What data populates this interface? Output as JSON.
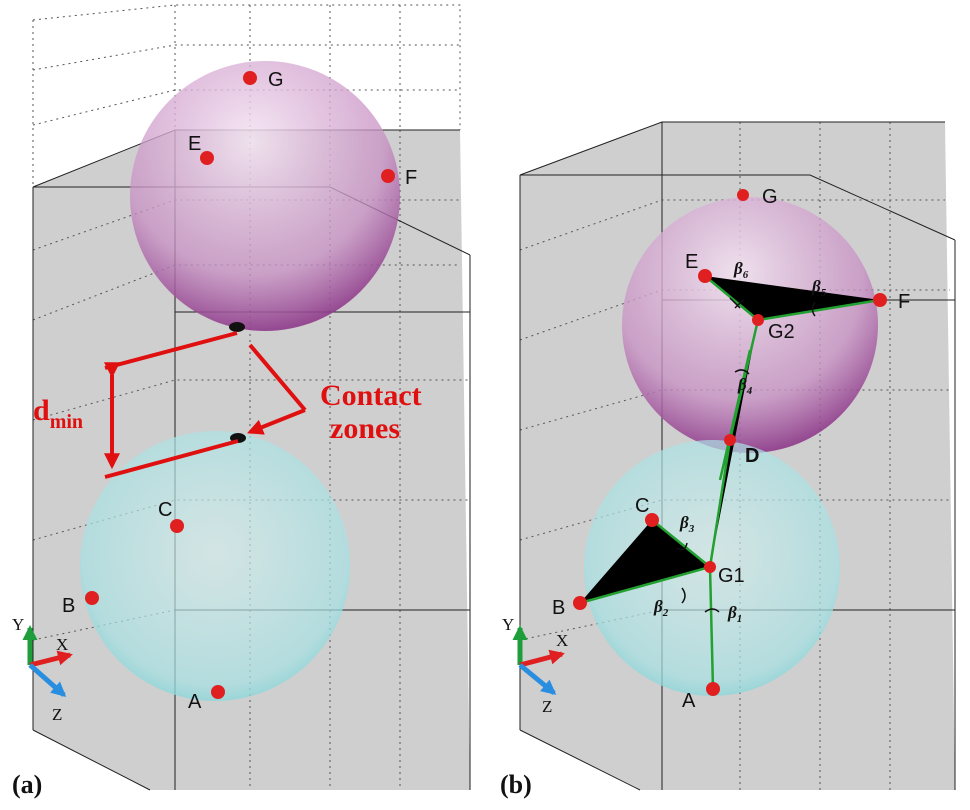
{
  "panels": [
    {
      "label": "(a)",
      "points": [
        "G",
        "E",
        "F",
        "C",
        "B",
        "A"
      ],
      "axes": [
        "Y",
        "X",
        "Z"
      ],
      "distance_label": {
        "symbol": "d",
        "subscript": "min"
      },
      "annotation": [
        "Contact",
        "zones"
      ]
    },
    {
      "label": "(b)",
      "points": [
        "G",
        "E",
        "F",
        "D",
        "C",
        "B",
        "A"
      ],
      "centers": [
        "G2",
        "G1"
      ],
      "axes": [
        "Y",
        "X",
        "Z"
      ],
      "angles": [
        {
          "symbol": "β",
          "subscript": "1"
        },
        {
          "symbol": "β",
          "subscript": "2"
        },
        {
          "symbol": "β",
          "subscript": "3"
        },
        {
          "symbol": "β",
          "subscript": "4"
        },
        {
          "symbol": "β",
          "subscript": "5"
        },
        {
          "symbol": "β",
          "subscript": "6"
        }
      ]
    }
  ]
}
